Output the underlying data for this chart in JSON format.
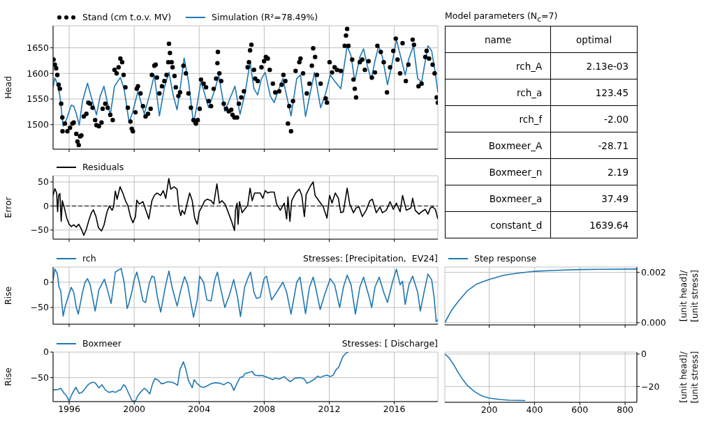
{
  "chart_data": [
    {
      "type": "line",
      "ylabel": "Head",
      "xlim": [
        1995.01,
        2018.68
      ],
      "xticks": [
        1996,
        2000,
        2004,
        2008,
        2012,
        2016
      ],
      "ylim": [
        1452,
        1693
      ],
      "yticks": [
        1500,
        1550,
        1600,
        1650
      ],
      "grid": true,
      "legend": "top left",
      "tick_labels": "y",
      "series": [
        {
          "name": "Stand (cm t.o.v. MV)",
          "type": "scatter",
          "marker": "circle",
          "color": "#000000",
          "x": [
            1995.04,
            1995.12,
            1995.2,
            1995.27,
            1995.35,
            1995.43,
            1995.51,
            1995.58,
            1995.59,
            1995.74,
            1995.89,
            1996.05,
            1996.2,
            1996.28,
            1996.44,
            1996.51,
            1996.59,
            1996.67,
            1996.75,
            1996.9,
            1997.06,
            1997.18,
            1997.29,
            1997.44,
            1997.6,
            1997.68,
            1997.83,
            1997.99,
            1998.06,
            1998.22,
            1998.37,
            1998.53,
            1998.68,
            1998.79,
            1998.92,
            1999.04,
            1999.15,
            1999.26,
            1999.35,
            1999.46,
            1999.61,
            1999.77,
            1999.85,
            1999.92,
            2000.08,
            2000.16,
            2000.23,
            2000.39,
            2000.54,
            2000.7,
            2000.85,
            2001.01,
            2001.09,
            2001.24,
            2001.32,
            2001.4,
            2001.55,
            2001.71,
            2001.86,
            2001.99,
            2002.1,
            2002.14,
            2002.2,
            2002.3,
            2002.36,
            2002.48,
            2002.56,
            2002.72,
            2002.82,
            2003.03,
            2003.18,
            2003.34,
            2003.49,
            2003.65,
            2003.8,
            2003.91,
            2004.03,
            2004.11,
            2004.27,
            2004.42,
            2004.58,
            2004.73,
            2004.89,
            2005.04,
            2005.12,
            2005.15,
            2005.24,
            2005.35,
            2005.51,
            2005.66,
            2005.82,
            2005.97,
            2006.05,
            2006.17,
            2006.33,
            2006.44,
            2006.59,
            2006.75,
            2006.98,
            2007.06,
            2007.13,
            2007.21,
            2007.37,
            2007.44,
            2007.6,
            2007.83,
            2007.99,
            2008.1,
            2008.22,
            2008.34,
            2008.53,
            2008.68,
            2008.92,
            2009.07,
            2009.18,
            2009.3,
            2009.46,
            2009.54,
            2009.65,
            2009.77,
            2009.93,
            2010.16,
            2010.23,
            2010.39,
            2010.62,
            2010.78,
            2010.93,
            2011.01,
            2011.13,
            2011.24,
            2011.47,
            2011.78,
            2011.86,
            2012.02,
            2012.17,
            2012.33,
            2012.48,
            2012.71,
            2012.95,
            2013.03,
            2013.1,
            2013.18,
            2013.41,
            2013.49,
            2013.57,
            2013.65,
            2013.88,
            2014.03,
            2014.19,
            2014.42,
            2014.62,
            2014.81,
            2014.96,
            2015.17,
            2015.35,
            2015.55,
            2015.74,
            2015.94,
            2016.09,
            2016.2,
            2016.36,
            2016.51,
            2016.71,
            2016.87,
            2017.13,
            2017.21,
            2017.49,
            2017.68,
            2017.91,
            2017.99,
            2018.14,
            2018.36,
            2018.48,
            2018.61,
            2018.68
          ],
          "values": [
            1627,
            1617,
            1610,
            1597,
            1578,
            1570,
            1541,
            1514,
            1487,
            1502,
            1487,
            1494,
            1502,
            1504,
            1482,
            1467,
            1460,
            1477,
            1479,
            1516,
            1521,
            1543,
            1541,
            1533,
            1509,
            1499,
            1497,
            1504,
            1531,
            1541,
            1533,
            1519,
            1509,
            1607,
            1600,
            1612,
            1629,
            1622,
            1597,
            1573,
            1533,
            1506,
            1492,
            1487,
            1524,
            1570,
            1575,
            1561,
            1536,
            1516,
            1521,
            1531,
            1597,
            1615,
            1617,
            1592,
            1561,
            1575,
            1585,
            1597,
            1622,
            1658,
            1640,
            1622,
            1612,
            1595,
            1573,
            1556,
            1563,
            1615,
            1600,
            1561,
            1533,
            1509,
            1502,
            1509,
            1531,
            1588,
            1580,
            1573,
            1546,
            1536,
            1570,
            1590,
            1620,
            1642,
            1600,
            1585,
            1541,
            1531,
            1526,
            1529,
            1519,
            1514,
            1514,
            1541,
            1553,
            1565,
            1612,
            1622,
            1645,
            1656,
            1607,
            1590,
            1585,
            1612,
            1624,
            1632,
            1629,
            1607,
            1580,
            1563,
            1565,
            1578,
            1597,
            1585,
            1502,
            1536,
            1487,
            1546,
            1605,
            1622,
            1629,
            1600,
            1561,
            1580,
            1615,
            1649,
            1632,
            1597,
            1580,
            1551,
            1543,
            1622,
            1602,
            1612,
            1607,
            1605,
            1654,
            1674,
            1687,
            1654,
            1627,
            1588,
            1570,
            1553,
            1622,
            1627,
            1607,
            1624,
            1592,
            1602,
            1654,
            1642,
            1622,
            1563,
            1612,
            1644,
            1668,
            1627,
            1600,
            1659,
            1585,
            1617,
            1666,
            1656,
            1575,
            1580,
            1632,
            1644,
            1629,
            1617,
            1600,
            1553,
            1543
          ]
        },
        {
          "name": "Simulation (R²=78.49%)",
          "type": "line",
          "color": "#1f77b4",
          "x": [
            1995.01,
            1995.12,
            1995.27,
            1995.43,
            1995.63,
            1995.82,
            1996.13,
            1996.28,
            1996.44,
            1996.62,
            1996.82,
            1997.13,
            1997.34,
            1997.68,
            1997.91,
            1998.14,
            1998.33,
            1998.53,
            1998.79,
            1999.15,
            1999.38,
            1999.69,
            1999.92,
            2000.23,
            2000.62,
            2000.93,
            2001.24,
            2001.55,
            2001.86,
            2002.14,
            2002.41,
            2002.64,
            2002.87,
            2003.07,
            2003.34,
            2003.65,
            2003.88,
            2004.11,
            2004.58,
            2004.96,
            2005.2,
            2005.58,
            2005.89,
            2006.2,
            2006.51,
            2006.82,
            2007.13,
            2007.37,
            2007.6,
            2007.83,
            2008.06,
            2008.37,
            2008.61,
            2008.84,
            2009.15,
            2009.38,
            2009.65,
            2010.0,
            2010.23,
            2010.54,
            2010.85,
            2011.09,
            2011.47,
            2011.78,
            2012.06,
            2012.33,
            2012.71,
            2013.1,
            2013.34,
            2013.57,
            2013.88,
            2014.11,
            2014.34,
            2014.58,
            2014.81,
            2015.04,
            2015.27,
            2015.58,
            2015.82,
            2016.13,
            2016.36,
            2016.67,
            2016.9,
            2017.18,
            2017.44,
            2017.68,
            2018.07,
            2018.3,
            2018.53,
            2018.68
          ],
          "values": [
            1573,
            1591,
            1580,
            1556,
            1497,
            1509,
            1538,
            1536,
            1521,
            1499,
            1546,
            1581,
            1556,
            1519,
            1556,
            1575,
            1546,
            1519,
            1575,
            1592,
            1570,
            1504,
            1526,
            1565,
            1521,
            1556,
            1597,
            1517,
            1573,
            1602,
            1556,
            1529,
            1580,
            1630,
            1585,
            1502,
            1541,
            1585,
            1533,
            1568,
            1596,
            1526,
            1551,
            1575,
            1520,
            1561,
            1622,
            1570,
            1558,
            1590,
            1602,
            1556,
            1543,
            1565,
            1590,
            1556,
            1517,
            1590,
            1597,
            1516,
            1565,
            1602,
            1533,
            1561,
            1597,
            1585,
            1570,
            1654,
            1634,
            1585,
            1632,
            1648,
            1615,
            1588,
            1624,
            1654,
            1632,
            1578,
            1612,
            1666,
            1637,
            1597,
            1629,
            1654,
            1590,
            1583,
            1654,
            1644,
            1600,
            1563
          ]
        }
      ]
    },
    {
      "type": "other",
      "title": "Model parameters (N$_{c}$=7)",
      "annotations": [
        "name",
        "optimal"
      ],
      "categories": [
        "rch_A",
        "rch_a",
        "rch_f",
        "Boxmeer_A",
        "Boxmeer_n",
        "Boxmeer_a",
        "constant_d"
      ],
      "values": [
        0.00213,
        123.45,
        -2.0,
        -28.71,
        2.19,
        37.49,
        1639.64
      ],
      "value_labels": [
        "2.13e-03",
        "123.45",
        "-2.00",
        "-28.71",
        "2.19",
        "37.49",
        "1639.64"
      ]
    },
    {
      "type": "line",
      "ylabel": "Error",
      "xlim": [
        1995.01,
        2018.68
      ],
      "xticks": [
        1996,
        2000,
        2004,
        2008,
        2012,
        2016
      ],
      "ylim": [
        -69,
        63
      ],
      "yticks": [
        -50,
        0,
        50
      ],
      "grid": true,
      "legend": "top left",
      "tick_labels": "y",
      "ref_lines": [
        {
          "axis": "y",
          "value": 0,
          "color": "#000000",
          "line_style": "dashed"
        }
      ],
      "series": [
        {
          "name": "Residuals",
          "color": "#000000",
          "x": [
            1995.01,
            1995.12,
            1995.23,
            1995.29,
            1995.35,
            1995.43,
            1995.51,
            1995.58,
            1995.69,
            1995.85,
            1996.0,
            1996.13,
            1996.28,
            1996.44,
            1996.59,
            1996.75,
            1996.9,
            1997.06,
            1997.21,
            1997.37,
            1997.49,
            1997.65,
            1997.8,
            1997.99,
            1998.14,
            1998.33,
            1998.48,
            1998.64,
            1998.73,
            1998.84,
            1998.95,
            1999.13,
            1999.3,
            1999.46,
            1999.61,
            1999.77,
            1999.92,
            2000.08,
            2000.16,
            2000.31,
            2000.54,
            2000.7,
            2000.9,
            2001.09,
            2001.24,
            2001.4,
            2001.63,
            2001.79,
            2001.94,
            2002.13,
            2002.25,
            2002.45,
            2002.64,
            2002.76,
            2002.87,
            2002.95,
            2003.1,
            2003.26,
            2003.41,
            2003.57,
            2003.72,
            2003.88,
            2004.0,
            2004.16,
            2004.34,
            2004.5,
            2004.73,
            2004.89,
            2005.09,
            2005.24,
            2005.4,
            2005.58,
            2005.74,
            2005.97,
            2006.17,
            2006.23,
            2006.33,
            2006.39,
            2006.48,
            2006.64,
            2006.79,
            2006.98,
            2007.13,
            2007.26,
            2007.41,
            2007.75,
            2007.91,
            2008.06,
            2008.22,
            2008.37,
            2008.61,
            2008.76,
            2008.99,
            2009.23,
            2009.38,
            2009.46,
            2009.58,
            2009.69,
            2009.93,
            2010.16,
            2010.31,
            2010.47,
            2010.58,
            2010.85,
            2011.01,
            2011.13,
            2011.4,
            2011.63,
            2011.86,
            2012.02,
            2012.17,
            2012.37,
            2012.56,
            2012.71,
            2012.87,
            2013.1,
            2013.26,
            2013.49,
            2013.65,
            2013.83,
            2014.03,
            2014.27,
            2014.5,
            2014.65,
            2014.89,
            2015.12,
            2015.27,
            2015.51,
            2015.74,
            2015.94,
            2016.13,
            2016.36,
            2016.51,
            2016.74,
            2017.02,
            2017.13,
            2017.29,
            2017.52,
            2017.68,
            2017.91,
            2018.07,
            2018.22,
            2018.36,
            2018.53,
            2018.68
          ],
          "values": [
            22,
            36,
            27,
            -12,
            22,
            26,
            -32,
            11,
            -2,
            -25,
            -38,
            -43,
            -39,
            -44,
            -38,
            -48,
            -61,
            -48,
            -30,
            -14,
            -8,
            -22,
            -45,
            -52,
            -40,
            -12,
            0,
            -9,
            -2,
            31,
            14,
            40,
            27,
            11,
            1,
            -22,
            -35,
            -22,
            12,
            4,
            9,
            -7,
            -27,
            11,
            22,
            27,
            22,
            32,
            16,
            57,
            35,
            40,
            35,
            -7,
            -20,
            -9,
            -17,
            6,
            27,
            11,
            -25,
            -38,
            -12,
            -2,
            11,
            14,
            11,
            4,
            46,
            6,
            11,
            4,
            -9,
            -30,
            -51,
            -9,
            6,
            -38,
            9,
            -14,
            -7,
            1,
            37,
            11,
            27,
            27,
            16,
            32,
            27,
            29,
            29,
            4,
            -9,
            6,
            -27,
            19,
            -32,
            11,
            27,
            35,
            22,
            -22,
            24,
            42,
            50,
            22,
            9,
            -2,
            -25,
            22,
            6,
            27,
            16,
            -14,
            -12,
            37,
            4,
            -14,
            -4,
            -2,
            -22,
            -9,
            11,
            14,
            -14,
            -2,
            -14,
            -9,
            9,
            -7,
            6,
            -12,
            22,
            -9,
            -4,
            16,
            -9,
            -17,
            -12,
            -7,
            -17,
            -4,
            -2,
            -7,
            -27
          ]
        }
      ]
    },
    {
      "type": "line",
      "title": "Stresses: [Precipitation,  EV24]",
      "ylabel": "Rise",
      "xlim": [
        1995.01,
        2018.68
      ],
      "xticks": [
        1996,
        2000,
        2004,
        2008,
        2012,
        2016
      ],
      "ylim": [
        -83,
        30
      ],
      "yticks": [
        -50,
        0
      ],
      "grid": true,
      "legend": "top left",
      "tick_labels": "y",
      "series": [
        {
          "name": "rch",
          "color": "#1f77b4",
          "x": [
            1995.01,
            1995.12,
            1995.27,
            1995.38,
            1995.48,
            1995.63,
            1995.74,
            1995.97,
            1996.13,
            1996.28,
            1996.44,
            1996.56,
            1996.82,
            1996.98,
            1997.13,
            1997.29,
            1997.6,
            1997.83,
            1997.99,
            1998.17,
            1998.37,
            1998.58,
            1998.84,
            1999.07,
            1999.2,
            1999.38,
            1999.57,
            1999.69,
            1999.85,
            2000.0,
            2000.16,
            2000.31,
            2000.54,
            2000.7,
            2000.93,
            2001.09,
            2001.24,
            2001.43,
            2001.63,
            2001.94,
            2002.14,
            2002.33,
            2002.64,
            2002.87,
            2003.1,
            2003.29,
            2003.65,
            2003.88,
            2004.03,
            2004.27,
            2004.47,
            2004.73,
            2004.96,
            2005.12,
            2005.27,
            2005.58,
            2005.86,
            2006.12,
            2006.36,
            2006.54,
            2006.79,
            2006.98,
            2007.16,
            2007.37,
            2007.52,
            2007.75,
            2007.99,
            2008.14,
            2008.45,
            2008.76,
            2009.15,
            2009.38,
            2009.65,
            2010.0,
            2010.2,
            2010.54,
            2010.78,
            2011.01,
            2011.16,
            2011.44,
            2011.71,
            2012.06,
            2012.33,
            2012.64,
            2012.87,
            2013.1,
            2013.34,
            2013.61,
            2013.88,
            2014.11,
            2014.42,
            2014.61,
            2014.81,
            2015.07,
            2015.35,
            2015.58,
            2015.89,
            2016.13,
            2016.36,
            2016.51,
            2016.67,
            2016.9,
            2017.13,
            2017.44,
            2017.6,
            2017.83,
            2018.07,
            2018.3,
            2018.45,
            2018.58,
            2018.68
          ],
          "values": [
            5,
            26,
            17,
            -10,
            -17,
            -67,
            -50,
            -25,
            -10,
            -20,
            -50,
            -63,
            -20,
            0,
            7,
            -5,
            -57,
            -15,
            -5,
            6,
            -17,
            -42,
            20,
            25,
            27,
            0,
            -52,
            -40,
            -20,
            5,
            20,
            0,
            -37,
            -40,
            -2,
            12,
            10,
            -30,
            -59,
            -5,
            22,
            -10,
            -47,
            -15,
            11,
            -5,
            -69,
            -35,
            12,
            0,
            -35,
            -37,
            5,
            20,
            -5,
            -50,
            -25,
            5,
            -30,
            -68,
            -10,
            7,
            20,
            -20,
            -32,
            -30,
            7,
            12,
            -35,
            -20,
            0,
            -20,
            -63,
            0,
            10,
            -62,
            -10,
            10,
            -10,
            -54,
            -25,
            7,
            -5,
            -50,
            -10,
            14,
            -5,
            -63,
            -10,
            10,
            -25,
            -50,
            -10,
            10,
            -20,
            -40,
            0,
            26,
            -5,
            2,
            -44,
            -5,
            12,
            -20,
            -57,
            -20,
            16,
            5,
            -30,
            -78,
            -74
          ]
        }
      ]
    },
    {
      "type": "line",
      "y2label": "[unit head]/\n[unit stress]",
      "xlim": [
        4,
        852
      ],
      "xticks": [
        200,
        400,
        600,
        800
      ],
      "y2lim": [
        -9e-05,
        0.00221
      ],
      "y2ticks": [
        {
          "value": 0,
          "label": "0.000"
        },
        {
          "value": 0.002,
          "label": "0.002"
        }
      ],
      "grid": true,
      "legend": "top left",
      "tick_labels": "y",
      "series": [
        {
          "name": "Step response",
          "color": "#1f77b4",
          "axis": "y2",
          "x": [
            4,
            33,
            64,
            105,
            146,
            200,
            268,
            340,
            400,
            494,
            600,
            700,
            852
          ],
          "values": [
            0,
            0.00048,
            0.00085,
            0.00128,
            0.00154,
            0.00172,
            0.00189,
            0.00198,
            0.00204,
            0.00208,
            0.00211,
            0.00212,
            0.00213
          ]
        }
      ]
    },
    {
      "type": "line",
      "title": "Stresses: [ Discharge]",
      "ylabel": "Rise",
      "xlim": [
        1995.01,
        2018.68
      ],
      "xticks": [
        1996,
        2000,
        2004,
        2008,
        2012,
        2016
      ],
      "ylim": [
        -97,
        0
      ],
      "yticks": [
        -50,
        0
      ],
      "grid": true,
      "legend": "top left",
      "series": [
        {
          "name": "Boxmeer",
          "color": "#1f77b4",
          "x": [
            1995.01,
            1995.2,
            1995.32,
            1995.48,
            1995.58,
            1995.69,
            1995.82,
            1996.0,
            1996.16,
            1996.41,
            1996.62,
            1996.78,
            1996.9,
            1997.13,
            1997.29,
            1997.44,
            1997.6,
            1997.83,
            1998.02,
            1998.22,
            1998.45,
            1998.68,
            1998.84,
            1999.04,
            1999.17,
            1999.35,
            1999.46,
            1999.69,
            1999.88,
            2000.08,
            2000.23,
            2000.44,
            2000.62,
            2000.78,
            2000.96,
            2001.12,
            2001.27,
            2001.43,
            2001.68,
            2001.86,
            2002.05,
            2002.33,
            2002.48,
            2002.67,
            2002.82,
            2003.03,
            2003.18,
            2003.34,
            2003.57,
            2003.69,
            2003.88,
            2004.11,
            2004.31,
            2004.5,
            2004.73,
            2004.96,
            2005.27,
            2005.51,
            2005.77,
            2005.97,
            2006.13,
            2006.33,
            2006.51,
            2006.7,
            2006.82,
            2007.06,
            2007.26,
            2007.41,
            2007.6,
            2007.91,
            2008.22,
            2008.53,
            2008.68,
            2008.92,
            2009.23,
            2009.43,
            2009.61,
            2009.89,
            2010.23,
            2010.47,
            2010.62,
            2010.85,
            2011.09,
            2011.29,
            2011.44,
            2011.63,
            2011.86,
            2012.06,
            2012.25,
            2012.41,
            2012.59,
            2012.71,
            2012.84,
            2013.02,
            2013.18
          ],
          "values": [
            -74,
            -74,
            -73,
            -71,
            -75,
            -81,
            -85,
            -96,
            -83,
            -69,
            -81,
            -79,
            -75,
            -65,
            -61,
            -59,
            -60,
            -70,
            -64,
            -74,
            -79,
            -77,
            -79,
            -75,
            -74,
            -64,
            -67,
            -83,
            -96,
            -96,
            -85,
            -77,
            -71,
            -75,
            -82,
            -63,
            -52,
            -54,
            -62,
            -61,
            -58,
            -59,
            -61,
            -65,
            -34,
            -19,
            -34,
            -56,
            -70,
            -54,
            -62,
            -68,
            -69,
            -66,
            -62,
            -60,
            -61,
            -64,
            -59,
            -63,
            -75,
            -61,
            -50,
            -48,
            -42,
            -40,
            -38,
            -45,
            -46,
            -46,
            -50,
            -54,
            -51,
            -53,
            -48,
            -54,
            -58,
            -51,
            -50,
            -53,
            -61,
            -58,
            -53,
            -47,
            -50,
            -47,
            -45,
            -48,
            -45,
            -35,
            -29,
            -19,
            -9,
            -2,
            0
          ]
        }
      ]
    },
    {
      "type": "line",
      "y2label": "[unit head]/\n[unit stress]",
      "xlim": [
        4,
        852
      ],
      "xticks": [
        200,
        400,
        600,
        800
      ],
      "y2lim": [
        -29.7,
        1.2
      ],
      "y2ticks": [
        -20,
        0
      ],
      "grid": true,
      "series": [
        {
          "color": "#1f77b4",
          "axis": "y2",
          "x": [
            4,
            22,
            43,
            64,
            84,
            105,
            136,
            166,
            200,
            248,
            289,
            359
          ],
          "values": [
            0,
            -2.2,
            -6.5,
            -11.6,
            -15.9,
            -19.6,
            -23.2,
            -25.7,
            -27.1,
            -28.0,
            -28.4,
            -28.6
          ]
        }
      ]
    }
  ]
}
